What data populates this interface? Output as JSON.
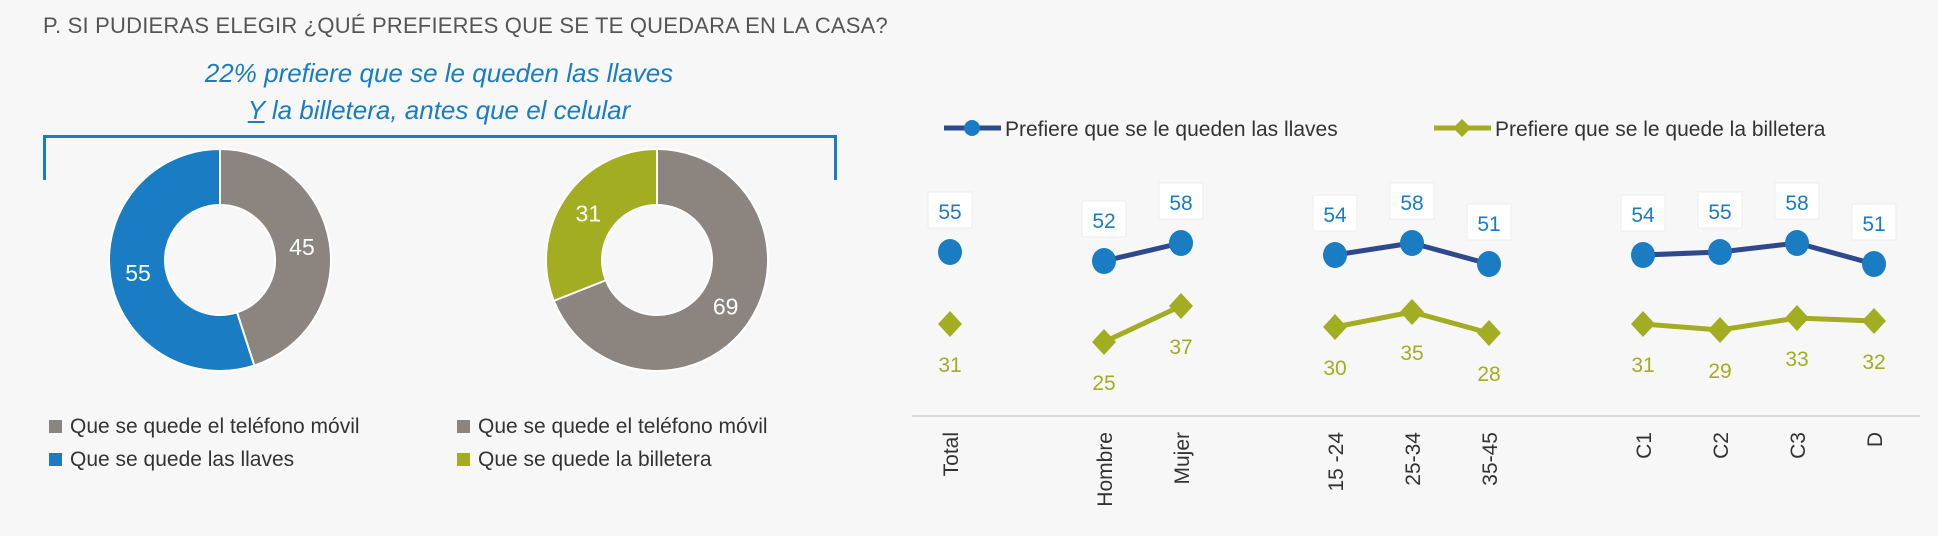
{
  "title": "P. SI PUDIERAS ELEGIR ¿QUÉ PREFIERES QUE SE TE QUEDARA EN LA CASA?",
  "annotation": {
    "line1": "22% prefiere que se le queden las llaves",
    "line2_underlined": "Y",
    "line2_rest": " la billetera, antes que el celular"
  },
  "colors": {
    "blue": "#1a7dc4",
    "navy": "#2e4a8c",
    "green": "#a2ad22",
    "gray": "#8c847f"
  },
  "chart_data": [
    {
      "type": "pie",
      "donut": true,
      "slices": [
        {
          "label": "Que se quede el teléfono móvil",
          "value": 45,
          "color": "#8c847f"
        },
        {
          "label": "Que se quede las llaves",
          "value": 55,
          "color": "#1a7dc4"
        }
      ],
      "legend": [
        "Que se quede el teléfono móvil",
        "Que se quede las llaves"
      ]
    },
    {
      "type": "pie",
      "donut": true,
      "slices": [
        {
          "label": "Que se quede el teléfono móvil",
          "value": 69,
          "color": "#8c847f"
        },
        {
          "label": "Que se quede la billetera",
          "value": 31,
          "color": "#a2ad22"
        }
      ],
      "legend": [
        "Que se quede el teléfono móvil",
        "Que se quede la billetera"
      ]
    },
    {
      "type": "line",
      "categories": [
        "Total",
        "Hombre",
        "Mujer",
        "15 -24",
        "25-34",
        "35-45",
        "C1",
        "C2",
        "C3",
        "D"
      ],
      "groups": [
        [
          0
        ],
        [
          1,
          2
        ],
        [
          3,
          4,
          5
        ],
        [
          6,
          7,
          8,
          9
        ]
      ],
      "legend_position": "top",
      "grid": false,
      "series": [
        {
          "name": "Prefiere que se le queden las llaves",
          "values": [
            55,
            52,
            58,
            54,
            58,
            51,
            54,
            55,
            58,
            51
          ],
          "marker": "circle",
          "color": "#1a7dc4",
          "line_color": "#2e4a8c"
        },
        {
          "name": "Prefiere que se le quede la billetera",
          "values": [
            31,
            25,
            37,
            30,
            35,
            28,
            31,
            29,
            33,
            32
          ],
          "marker": "diamond",
          "color": "#a2ad22",
          "line_color": "#a2ad22"
        }
      ]
    }
  ]
}
